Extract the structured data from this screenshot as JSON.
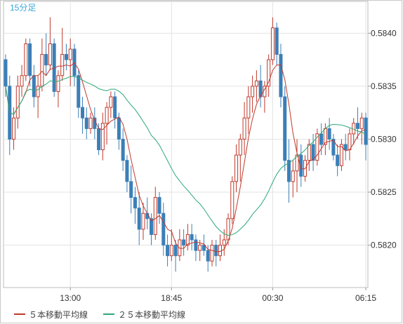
{
  "chart_data": {
    "type": "candlestick",
    "timeframe": "15分足",
    "x_tick_labels": [
      "13:00",
      "18:45",
      "00:30",
      "06:15"
    ],
    "y_tick_labels": [
      "0.5840",
      "0.5835",
      "0.5830",
      "0.5825",
      "0.5820"
    ],
    "ylim": [
      0.5816,
      0.5843
    ],
    "grid": true,
    "legend_position": "bottom",
    "series": [
      {
        "name": "５本移動平均線",
        "type": "line",
        "color": "#c0392b"
      },
      {
        "name": "２５本移動平均線",
        "type": "line",
        "color": "#2aa876"
      }
    ],
    "candle_colors": {
      "up": "#c0392b",
      "down": "#3b7fb8"
    },
    "candles": [
      [
        0.58375,
        0.5838,
        0.5834,
        0.5835
      ],
      [
        0.5835,
        0.5836,
        0.58285,
        0.583
      ],
      [
        0.583,
        0.5833,
        0.5829,
        0.5832
      ],
      [
        0.5832,
        0.5836,
        0.5831,
        0.5835
      ],
      [
        0.5835,
        0.5837,
        0.5834,
        0.5836
      ],
      [
        0.5836,
        0.58395,
        0.58355,
        0.5839
      ],
      [
        0.5839,
        0.58395,
        0.5835,
        0.5836
      ],
      [
        0.5836,
        0.5837,
        0.5833,
        0.5834
      ],
      [
        0.5834,
        0.5836,
        0.5832,
        0.5835
      ],
      [
        0.5835,
        0.58395,
        0.58345,
        0.5838
      ],
      [
        0.5838,
        0.584,
        0.5836,
        0.5837
      ],
      [
        0.5837,
        0.58415,
        0.58365,
        0.5839
      ],
      [
        0.5839,
        0.58395,
        0.5834,
        0.58345
      ],
      [
        0.58345,
        0.58365,
        0.5833,
        0.5836
      ],
      [
        0.5836,
        0.58405,
        0.58355,
        0.5838
      ],
      [
        0.5838,
        0.5839,
        0.58365,
        0.58375
      ],
      [
        0.58375,
        0.58395,
        0.5835,
        0.58385
      ],
      [
        0.58385,
        0.5839,
        0.5835,
        0.5836
      ],
      [
        0.5836,
        0.58365,
        0.5832,
        0.5833
      ],
      [
        0.5833,
        0.5834,
        0.58305,
        0.5832
      ],
      [
        0.5832,
        0.5833,
        0.583,
        0.5831
      ],
      [
        0.5831,
        0.58325,
        0.58305,
        0.5832
      ],
      [
        0.5832,
        0.5833,
        0.583,
        0.5831
      ],
      [
        0.5831,
        0.58315,
        0.58285,
        0.5829
      ],
      [
        0.5829,
        0.58325,
        0.5828,
        0.58315
      ],
      [
        0.58315,
        0.58335,
        0.58295,
        0.5833
      ],
      [
        0.5833,
        0.58345,
        0.5832,
        0.5834
      ],
      [
        0.5834,
        0.58345,
        0.5831,
        0.5832
      ],
      [
        0.5832,
        0.58325,
        0.5829,
        0.583
      ],
      [
        0.583,
        0.5831,
        0.5827,
        0.5828
      ],
      [
        0.5828,
        0.58285,
        0.5825,
        0.5826
      ],
      [
        0.5826,
        0.58275,
        0.5823,
        0.58245
      ],
      [
        0.58245,
        0.58255,
        0.5822,
        0.58235
      ],
      [
        0.58235,
        0.5825,
        0.582,
        0.58215
      ],
      [
        0.58215,
        0.5824,
        0.58205,
        0.5823
      ],
      [
        0.5823,
        0.58245,
        0.58215,
        0.58225
      ],
      [
        0.58225,
        0.5823,
        0.582,
        0.5821
      ],
      [
        0.5821,
        0.58255,
        0.58205,
        0.58245
      ],
      [
        0.58245,
        0.5825,
        0.5822,
        0.5823
      ],
      [
        0.5823,
        0.5824,
        0.5819,
        0.582
      ],
      [
        0.582,
        0.5821,
        0.5818,
        0.5819
      ],
      [
        0.5819,
        0.58215,
        0.58185,
        0.582
      ],
      [
        0.582,
        0.58205,
        0.58175,
        0.5819
      ],
      [
        0.5819,
        0.58215,
        0.58185,
        0.58205
      ],
      [
        0.58205,
        0.58215,
        0.5819,
        0.582
      ],
      [
        0.582,
        0.5822,
        0.58195,
        0.5821
      ],
      [
        0.5821,
        0.5822,
        0.58195,
        0.58205
      ],
      [
        0.58205,
        0.5821,
        0.58185,
        0.58195
      ],
      [
        0.58195,
        0.58205,
        0.58185,
        0.582
      ],
      [
        0.582,
        0.5821,
        0.5819,
        0.58195
      ],
      [
        0.58195,
        0.582,
        0.58175,
        0.58185
      ],
      [
        0.58185,
        0.58205,
        0.5818,
        0.582
      ],
      [
        0.582,
        0.58205,
        0.5818,
        0.5819
      ],
      [
        0.5819,
        0.5821,
        0.58185,
        0.582
      ],
      [
        0.582,
        0.58215,
        0.5819,
        0.58205
      ],
      [
        0.58205,
        0.5823,
        0.582,
        0.58225
      ],
      [
        0.58225,
        0.58265,
        0.5822,
        0.5826
      ],
      [
        0.5826,
        0.58295,
        0.5825,
        0.58285
      ],
      [
        0.58285,
        0.58305,
        0.5826,
        0.583
      ],
      [
        0.583,
        0.58335,
        0.58285,
        0.5832
      ],
      [
        0.5832,
        0.5835,
        0.58305,
        0.5834
      ],
      [
        0.5834,
        0.5836,
        0.58325,
        0.5835
      ],
      [
        0.5835,
        0.58365,
        0.58335,
        0.58355
      ],
      [
        0.58355,
        0.5837,
        0.5833,
        0.5834
      ],
      [
        0.5834,
        0.58355,
        0.58325,
        0.5835
      ],
      [
        0.5835,
        0.5838,
        0.5834,
        0.58375
      ],
      [
        0.58375,
        0.58415,
        0.5837,
        0.58405
      ],
      [
        0.58405,
        0.5841,
        0.5837,
        0.5838
      ],
      [
        0.5838,
        0.5839,
        0.5833,
        0.5834
      ],
      [
        0.5834,
        0.5835,
        0.5827,
        0.5828
      ],
      [
        0.5828,
        0.583,
        0.5824,
        0.5826
      ],
      [
        0.5826,
        0.5828,
        0.58245,
        0.5827
      ],
      [
        0.5827,
        0.583,
        0.5825,
        0.58285
      ],
      [
        0.58285,
        0.58295,
        0.58255,
        0.58265
      ],
      [
        0.58265,
        0.58285,
        0.5826,
        0.5828
      ],
      [
        0.5828,
        0.583,
        0.5827,
        0.58295
      ],
      [
        0.58295,
        0.58305,
        0.5827,
        0.5828
      ],
      [
        0.5828,
        0.5831,
        0.58275,
        0.58305
      ],
      [
        0.58305,
        0.58315,
        0.58285,
        0.58295
      ],
      [
        0.58295,
        0.58315,
        0.58285,
        0.5831
      ],
      [
        0.5831,
        0.5832,
        0.5829,
        0.583
      ],
      [
        0.583,
        0.58305,
        0.5828,
        0.58285
      ],
      [
        0.58285,
        0.58295,
        0.58265,
        0.58275
      ],
      [
        0.58275,
        0.583,
        0.5827,
        0.58295
      ],
      [
        0.58295,
        0.58305,
        0.5828,
        0.5829
      ],
      [
        0.5829,
        0.5831,
        0.5828,
        0.58305
      ],
      [
        0.58305,
        0.5832,
        0.58295,
        0.58315
      ],
      [
        0.58315,
        0.5833,
        0.583,
        0.5831
      ],
      [
        0.5831,
        0.58325,
        0.58295,
        0.5832
      ],
      [
        0.5832,
        0.58325,
        0.5828,
        0.58295
      ]
    ]
  }
}
